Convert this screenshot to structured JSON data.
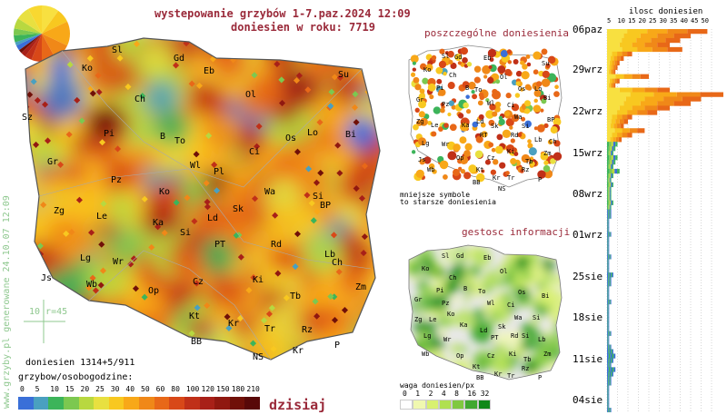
{
  "header": {
    "title": "wystepowanie grzybów 1-7.paz.2024 12:09",
    "reports_year": "doniesien w roku: 7719"
  },
  "side_text": "www.grzyby.pl generowane 24.10.07 12:09",
  "scale_marker": "10 r=45",
  "stats": {
    "reports": "doniesien 1314+5/911",
    "unit": "grzybow/osobogodzine:"
  },
  "legend_main": {
    "labels": [
      "0",
      "5",
      "10",
      "15",
      "20",
      "25",
      "30",
      "40",
      "50",
      "60",
      "80",
      "100",
      "120",
      "150",
      "180",
      "210"
    ],
    "colors": [
      "#3a6fd8",
      "#4aa0c0",
      "#3cb45a",
      "#7cc850",
      "#b8d840",
      "#e8e040",
      "#f8c820",
      "#f8a818",
      "#f08818",
      "#e86818",
      "#d84818",
      "#c03018",
      "#a82018",
      "#901810",
      "#701008",
      "#580808"
    ]
  },
  "today_label": "dzisiaj",
  "map_main": {
    "labels": [
      "Sl",
      "Gd",
      "Eb",
      "Su",
      "Ko",
      "Ol",
      "Ch",
      "Bi",
      "Sz",
      "Pi",
      "B",
      "To",
      "Os",
      "Lo",
      "Ci",
      "Wl",
      "Pl",
      "Gr",
      "Pz",
      "Zg",
      "Ko",
      "Le",
      "Wa",
      "Si",
      "Sk",
      "BP",
      "Ka",
      "Si",
      "Ld",
      "PT",
      "Lg",
      "Wr",
      "Rd",
      "Lb",
      "Ch",
      "Js",
      "Wb",
      "Op",
      "Cz",
      "Ki",
      "Tb",
      "Zm",
      "Kt",
      "Kr",
      "Rz",
      "BB",
      "Tr",
      "NS",
      "Kr",
      "P"
    ]
  },
  "panel_individual": {
    "title": "poszczególne doniesienia",
    "note1": "mniejsze symbole",
    "note2": "to starsze doniesienia",
    "labels": [
      "Sl",
      "Gd",
      "Eb",
      "Su",
      "Ko",
      "Ol",
      "Ch",
      "Pi",
      "B",
      "To",
      "Os",
      "Lo",
      "Bi",
      "Gr",
      "Pz",
      "Wl",
      "Ci",
      "Zg",
      "Le",
      "Ld",
      "Wa",
      "BP",
      "Lg",
      "Ka",
      "RT",
      "Rd",
      "Sk",
      "Si",
      "Lb",
      "Ch",
      "Wr",
      "Js",
      "Op",
      "Ki",
      "Tb",
      "Kt",
      "Cz",
      "Zm",
      "Wb",
      "Kr",
      "Rz",
      "BB",
      "Tr",
      "NS",
      "P"
    ]
  },
  "panel_density": {
    "title": "gestosc informacji",
    "legend_title": "waga doniesien/px",
    "labels": [
      "0",
      "1",
      "2",
      "4",
      "8",
      "16",
      "32"
    ],
    "colors": [
      "#ffffff",
      "#f0f8b0",
      "#d8f070",
      "#b0e050",
      "#80c840",
      "#40a830",
      "#108818"
    ],
    "map_labels": [
      "Sl",
      "Gd",
      "Eb",
      "Ko",
      "Ol",
      "Ch",
      "Pi",
      "B",
      "To",
      "Os",
      "Bi",
      "Gr",
      "Pz",
      "Wl",
      "Ci",
      "Zg",
      "Ko",
      "Le",
      "Wa",
      "Si",
      "Lg",
      "Ka",
      "Ld",
      "PT",
      "Rd",
      "Sk",
      "Wr",
      "Si",
      "Lb",
      "Wb",
      "Op",
      "Cz",
      "Ki",
      "Tb",
      "Zm",
      "Kt",
      "Kr",
      "Rz",
      "BB",
      "Tr",
      "NS",
      "P"
    ]
  },
  "timeline": {
    "title": "ilosc doniesien",
    "axis": [
      "5",
      "10",
      "15",
      "20",
      "25",
      "30",
      "35",
      "40",
      "45",
      "50"
    ],
    "dates": [
      "06paz",
      "29wrz",
      "22wrz",
      "15wrz",
      "08wrz",
      "01wrz",
      "25sie",
      "18sie",
      "11sie",
      "04sie"
    ],
    "bar_values": [
      48,
      40,
      35,
      30,
      36,
      12,
      8,
      6,
      5,
      4,
      20,
      6,
      4,
      30,
      58,
      45,
      40,
      30,
      24,
      12,
      10,
      8,
      18,
      12,
      7,
      5,
      4,
      3,
      5,
      4,
      3,
      6,
      3,
      2,
      3,
      2,
      2,
      2,
      3,
      2,
      2,
      2,
      1,
      1,
      1,
      2,
      1,
      1,
      1,
      1,
      2,
      1,
      1,
      1,
      3,
      2,
      2,
      1,
      1,
      1,
      2,
      1,
      1,
      1,
      1,
      1,
      1,
      2,
      1,
      1,
      2,
      3,
      4,
      3,
      2,
      4,
      3,
      2,
      2,
      1,
      1,
      1,
      1,
      1,
      2
    ]
  }
}
